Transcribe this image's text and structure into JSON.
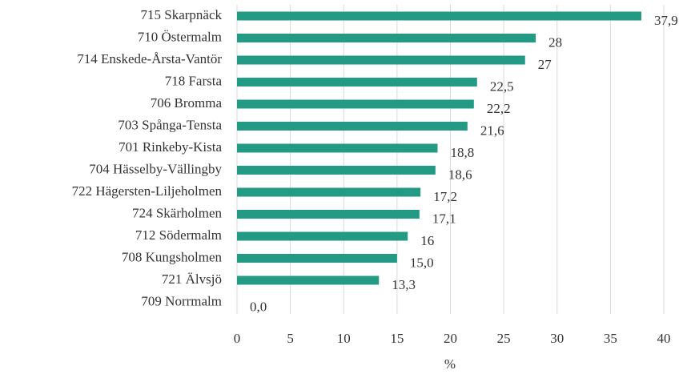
{
  "chart_data": {
    "type": "bar",
    "orientation": "horizontal",
    "categories": [
      "715 Skarpnäck",
      "710 Östermalm",
      "714 Enskede-Årsta-Vantör",
      "718 Farsta",
      "706 Bromma",
      "703 Spånga-Tensta",
      "701 Rinkeby-Kista",
      "704 Hässelby-Vällingby",
      "722 Hägersten-Liljeholmen",
      "724 Skärholmen",
      "712 Södermalm",
      "708 Kungsholmen",
      "721 Älvsjö",
      "709 Norrmalm"
    ],
    "values": [
      37.9,
      28,
      27,
      22.5,
      22.2,
      21.6,
      18.8,
      18.6,
      17.2,
      17.1,
      16,
      15.0,
      13.3,
      0.0
    ],
    "value_labels": [
      "37,9",
      "28",
      "27",
      "22,5",
      "22,2",
      "21,6",
      "18,8",
      "18,6",
      "17,2",
      "17,1",
      "16",
      "15,0",
      "13,3",
      "0,0"
    ],
    "color": "#229a84",
    "xlabel": "%",
    "xlim": [
      0,
      40
    ],
    "xticks": [
      0,
      5,
      10,
      15,
      20,
      25,
      30,
      35,
      40
    ],
    "grid": true
  }
}
